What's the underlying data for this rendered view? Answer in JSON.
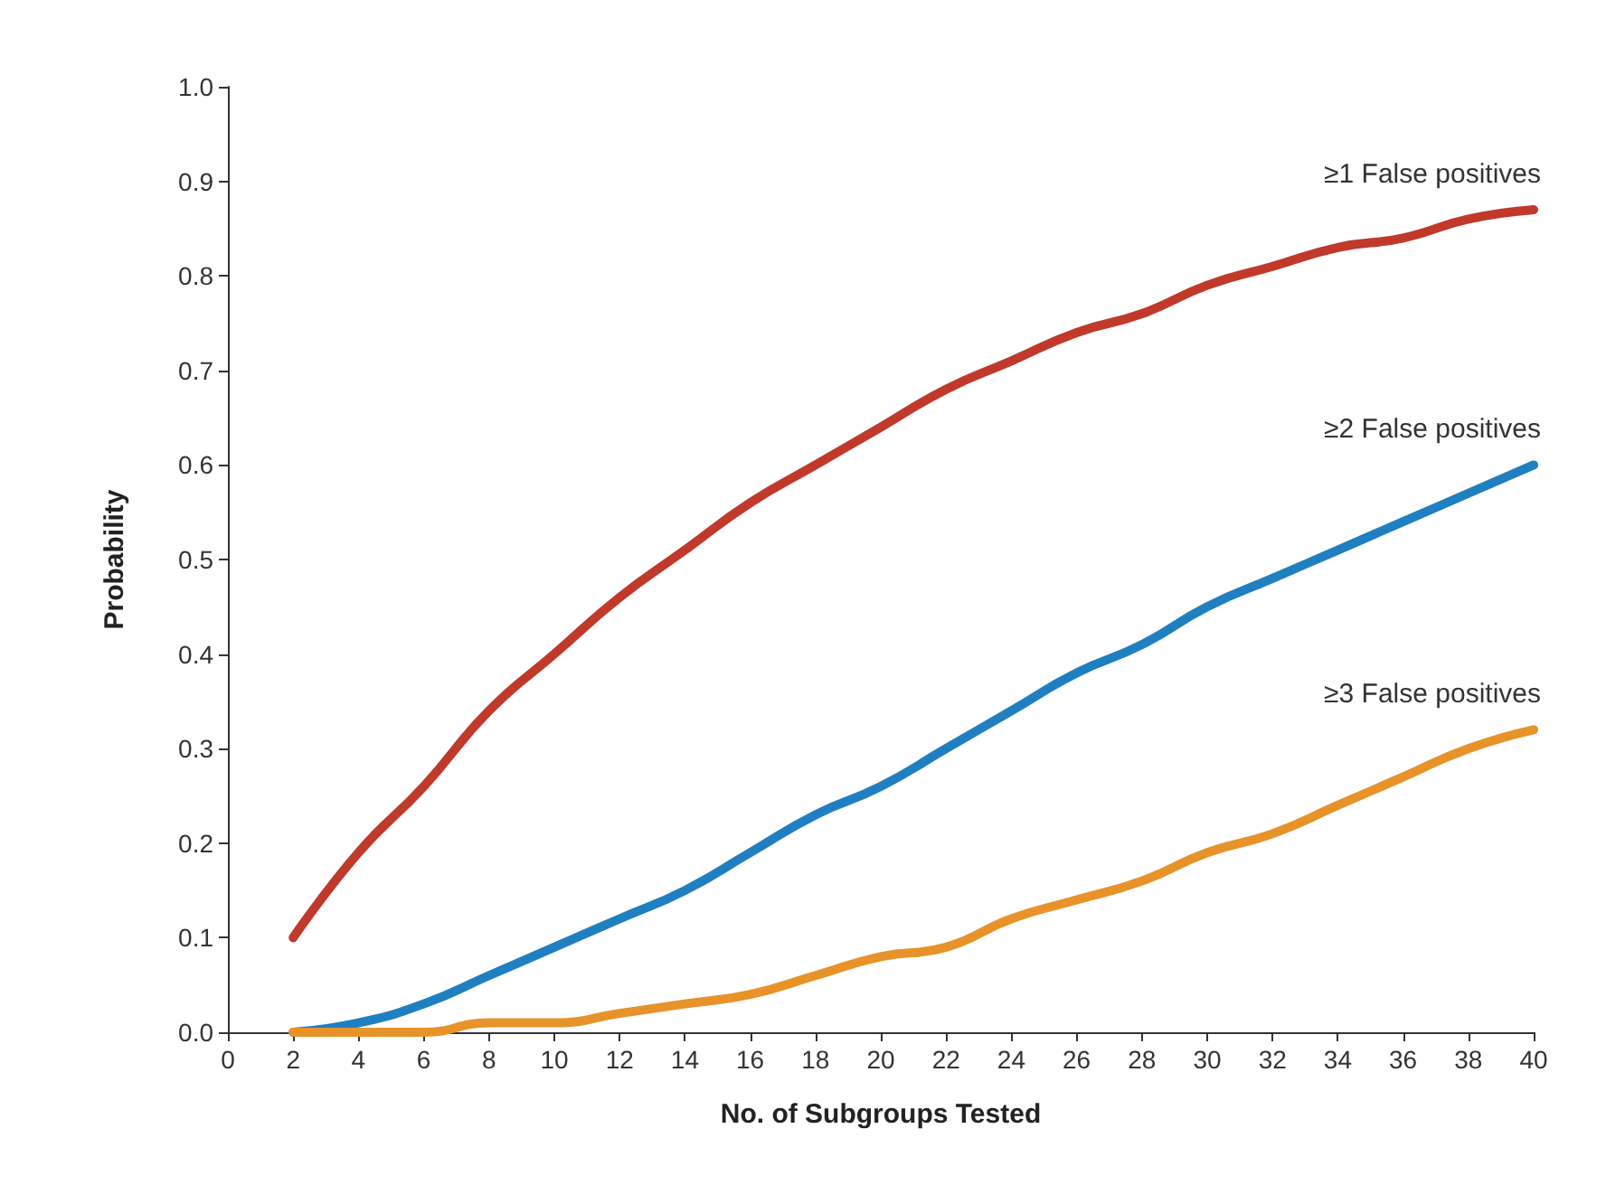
{
  "chart_data": {
    "type": "line",
    "xlabel": "No. of Subgroups Tested",
    "ylabel": "Probability",
    "x": [
      2,
      4,
      6,
      8,
      10,
      12,
      14,
      16,
      18,
      20,
      22,
      24,
      26,
      28,
      30,
      32,
      34,
      36,
      38,
      40
    ],
    "series": [
      {
        "name": "≥1 False positives",
        "color": "#c0392b",
        "values": [
          0.1,
          0.19,
          0.26,
          0.34,
          0.4,
          0.46,
          0.51,
          0.56,
          0.6,
          0.64,
          0.68,
          0.71,
          0.74,
          0.76,
          0.79,
          0.81,
          0.83,
          0.84,
          0.86,
          0.87
        ]
      },
      {
        "name": "≥2 False positives",
        "color": "#1f7fc1",
        "values": [
          0.0,
          0.01,
          0.03,
          0.06,
          0.09,
          0.12,
          0.15,
          0.19,
          0.23,
          0.26,
          0.3,
          0.34,
          0.38,
          0.41,
          0.45,
          0.48,
          0.51,
          0.54,
          0.57,
          0.6
        ]
      },
      {
        "name": "≥3 False positives",
        "color": "#e8922a",
        "values": [
          0.0,
          0.0,
          0.0,
          0.01,
          0.01,
          0.02,
          0.03,
          0.04,
          0.06,
          0.08,
          0.09,
          0.12,
          0.14,
          0.16,
          0.19,
          0.21,
          0.24,
          0.27,
          0.3,
          0.32
        ]
      }
    ],
    "xlim": [
      0,
      40
    ],
    "xticks": [
      0,
      2,
      4,
      6,
      8,
      10,
      12,
      14,
      16,
      18,
      20,
      22,
      24,
      26,
      28,
      30,
      32,
      34,
      36,
      38,
      40
    ],
    "ylim": [
      0,
      1
    ],
    "yticks": [
      {
        "value": 0,
        "label": "0.0"
      },
      {
        "value": 0.1,
        "label": "0.1"
      },
      {
        "value": 0.2,
        "label": "0.2"
      },
      {
        "value": 0.3,
        "label": "0.3"
      },
      {
        "value": 0.4,
        "label": "0.4"
      },
      {
        "value": 0.5,
        "label": "0.5"
      },
      {
        "value": 0.6,
        "label": "0.6"
      },
      {
        "value": 0.7,
        "label": "0.7"
      },
      {
        "value": 0.8,
        "label": "0.8"
      },
      {
        "value": 0.9,
        "label": "0.9"
      },
      {
        "value": 1,
        "label": "1.0"
      }
    ],
    "grid": false,
    "legend": false,
    "marker": "none",
    "line_style": "solid"
  }
}
